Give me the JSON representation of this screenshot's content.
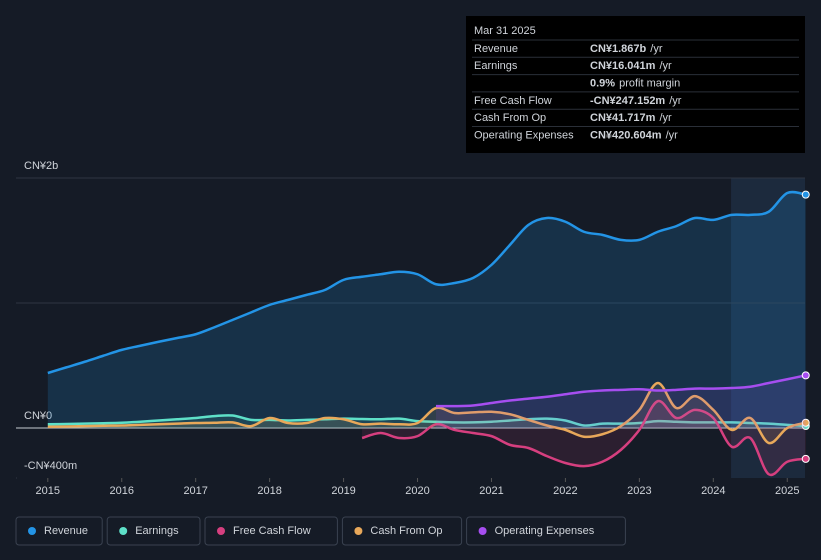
{
  "chart_data": {
    "type": "line",
    "x": [
      2015,
      2015.25,
      2015.5,
      2015.75,
      2016,
      2016.25,
      2016.5,
      2016.75,
      2017,
      2017.25,
      2017.5,
      2017.75,
      2018,
      2018.25,
      2018.5,
      2018.75,
      2019,
      2019.25,
      2019.5,
      2019.75,
      2020,
      2020.25,
      2020.5,
      2020.75,
      2021,
      2021.25,
      2021.5,
      2021.75,
      2022,
      2022.25,
      2022.5,
      2022.75,
      2023,
      2023.25,
      2023.5,
      2023.75,
      2024,
      2024.25,
      2024.5,
      2024.75,
      2025,
      2025.25
    ],
    "series": [
      {
        "name": "Revenue",
        "color": "#2394e6",
        "values": [
          440,
          485,
          530,
          578,
          625,
          658,
          690,
          720,
          750,
          805,
          865,
          925,
          985,
          1025,
          1065,
          1105,
          1185,
          1210,
          1230,
          1250,
          1230,
          1150,
          1160,
          1200,
          1305,
          1465,
          1625,
          1680,
          1650,
          1570,
          1545,
          1505,
          1505,
          1570,
          1615,
          1680,
          1665,
          1705,
          1705,
          1730,
          1880,
          1867
        ]
      },
      {
        "name": "Earnings",
        "color": "#5ee0c8",
        "values": [
          30,
          32,
          35,
          38,
          42,
          50,
          60,
          70,
          80,
          95,
          100,
          65,
          65,
          60,
          65,
          70,
          75,
          72,
          70,
          75,
          55,
          50,
          45,
          45,
          50,
          60,
          70,
          75,
          60,
          20,
          35,
          35,
          40,
          55,
          50,
          45,
          45,
          45,
          40,
          35,
          25,
          16
        ]
      },
      {
        "name": "Free Cash Flow",
        "color": "#d63f7f",
        "values": [
          null,
          null,
          null,
          null,
          null,
          null,
          null,
          null,
          null,
          null,
          null,
          null,
          null,
          null,
          null,
          null,
          null,
          -80,
          -40,
          -80,
          -65,
          30,
          -15,
          -40,
          -65,
          -135,
          -160,
          -225,
          -280,
          -305,
          -270,
          -175,
          -15,
          215,
          80,
          145,
          80,
          -150,
          -80,
          -370,
          -270,
          -247
        ]
      },
      {
        "name": "Cash From Op",
        "color": "#e8a85a",
        "values": [
          10,
          12,
          15,
          18,
          20,
          25,
          30,
          35,
          40,
          42,
          45,
          15,
          80,
          40,
          40,
          80,
          70,
          30,
          35,
          30,
          40,
          160,
          120,
          125,
          130,
          110,
          65,
          20,
          -15,
          -70,
          -50,
          15,
          145,
          360,
          160,
          255,
          145,
          -15,
          80,
          -120,
          0,
          42
        ]
      },
      {
        "name": "Operating Expenses",
        "color": "#a64ef0",
        "values": [
          null,
          null,
          null,
          null,
          null,
          null,
          null,
          null,
          null,
          null,
          null,
          null,
          null,
          null,
          null,
          null,
          null,
          null,
          null,
          null,
          null,
          175,
          175,
          180,
          200,
          220,
          235,
          250,
          270,
          290,
          300,
          305,
          310,
          300,
          305,
          315,
          315,
          320,
          330,
          360,
          390,
          421
        ]
      }
    ],
    "xlim": [
      2014.57,
      2025.24
    ],
    "xticks": [
      2015,
      2016,
      2017,
      2018,
      2019,
      2020,
      2021,
      2022,
      2023,
      2024,
      2025
    ],
    "ylim": [
      -400,
      2000
    ],
    "yticks": [
      {
        "value": 2000,
        "label": "CN¥2b"
      },
      {
        "value": 0,
        "label": "CN¥0"
      },
      {
        "value": -400,
        "label": "-CN¥400m"
      }
    ],
    "ygrid": [
      2000,
      1000
    ],
    "highlight": [
      2024.24,
      2025.24
    ]
  },
  "tooltip": {
    "date": "Mar 31 2025",
    "rows": [
      {
        "label": "Revenue",
        "value": "CN¥1.867b",
        "unit": "/yr",
        "color": "#2394e6"
      },
      {
        "label": "Earnings",
        "value": "CN¥16.041m",
        "unit": "/yr",
        "color": "#5ee0c8"
      },
      {
        "label": "",
        "value": "0.9%",
        "unit": "profit margin",
        "color": "#ffffff"
      },
      {
        "label": "Free Cash Flow",
        "value": "-CN¥247.152m",
        "unit": "/yr",
        "color": "#e84545"
      },
      {
        "label": "Cash From Op",
        "value": "CN¥41.717m",
        "unit": "/yr",
        "color": "#e8a85a"
      },
      {
        "label": "Operating Expenses",
        "value": "CN¥420.604m",
        "unit": "/yr",
        "color": "#a64ef0"
      }
    ]
  }
}
